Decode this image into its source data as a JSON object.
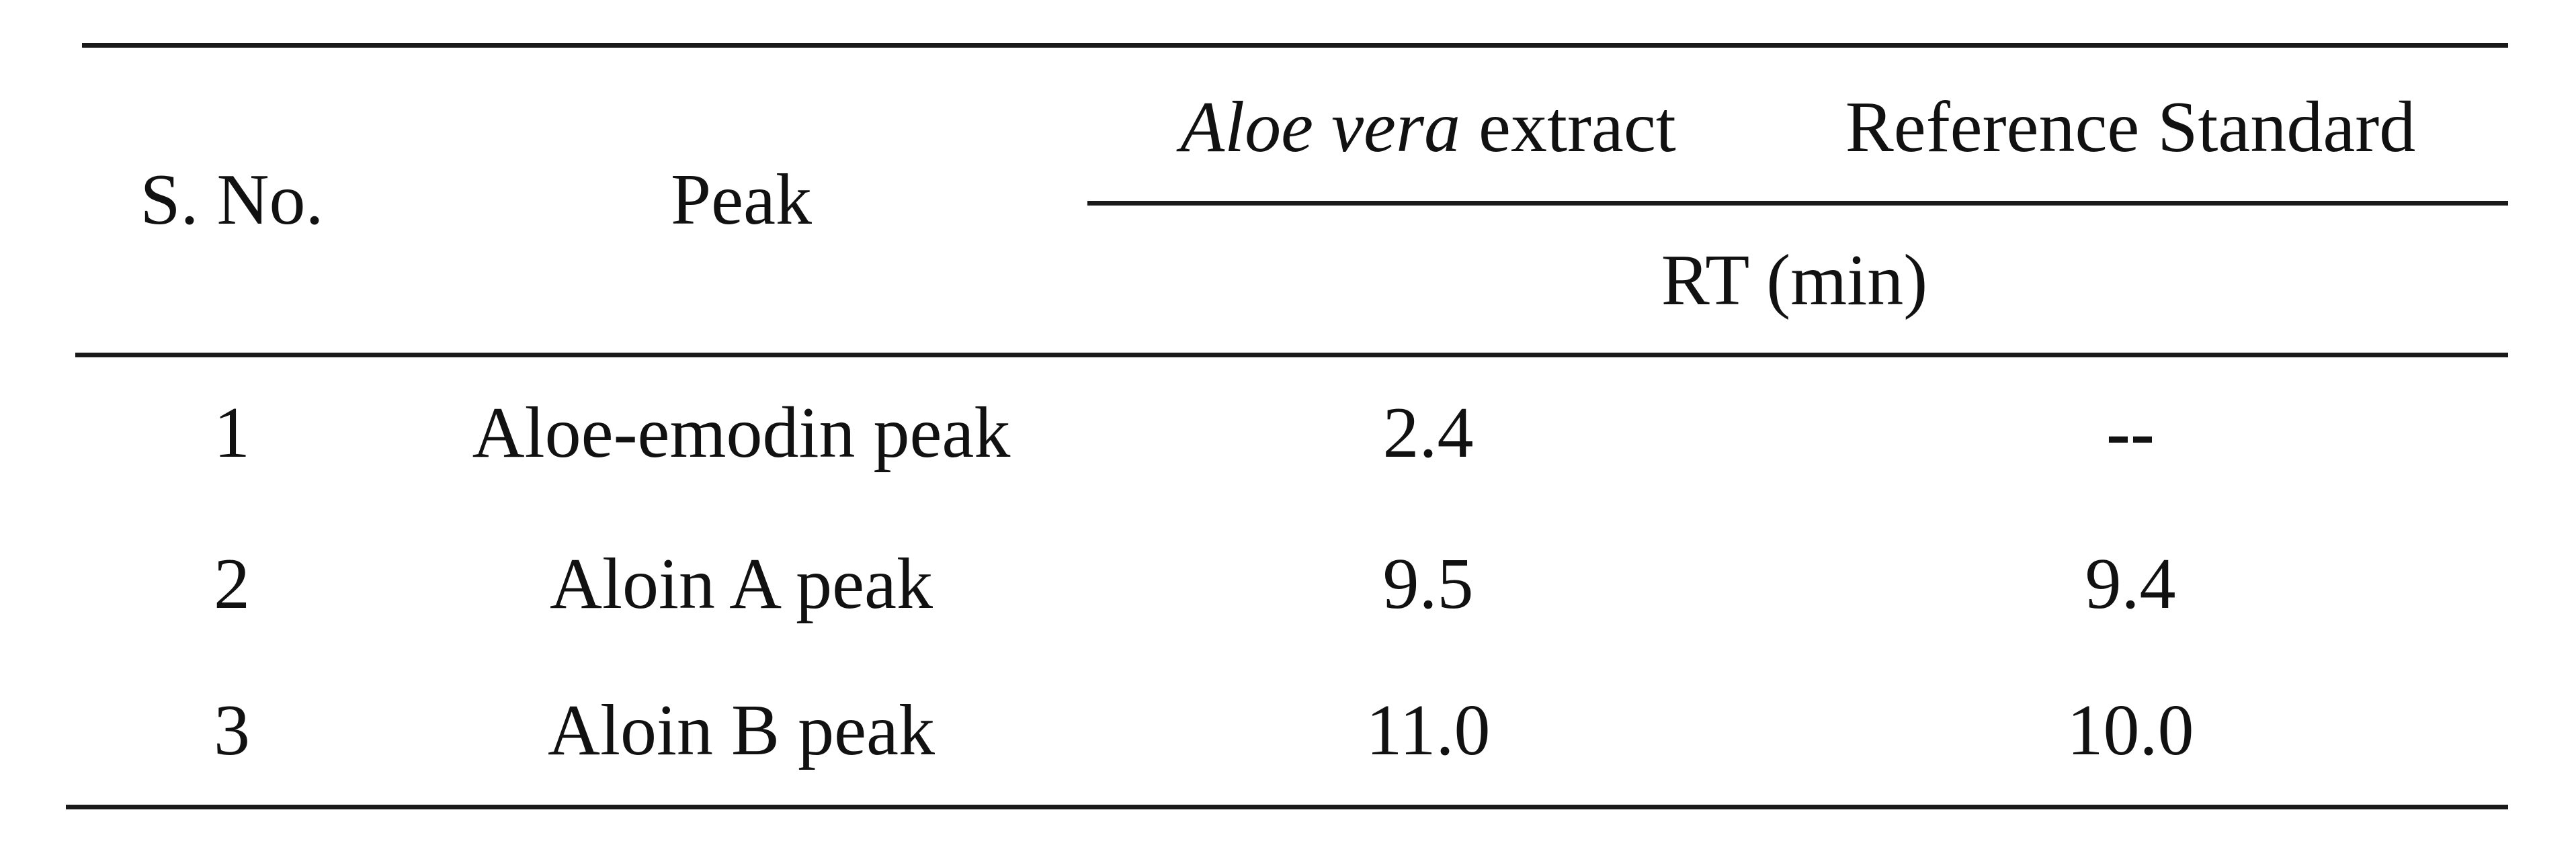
{
  "table": {
    "header": {
      "sno": "S. No.",
      "peak": "Peak",
      "aloe_italic": "Aloe vera",
      "aloe_suffix": " extract",
      "reference": "Reference Standard",
      "rt": "RT (min)"
    },
    "rows": [
      {
        "sno": "1",
        "peak": "Aloe-emodin peak",
        "aloe": "2.4",
        "reference": "--"
      },
      {
        "sno": "2",
        "peak": "Aloin A peak",
        "aloe": "9.5",
        "reference": "9.4"
      },
      {
        "sno": "3",
        "peak": "Aloin B peak",
        "aloe": "11.0",
        "reference": "10.0"
      }
    ]
  }
}
